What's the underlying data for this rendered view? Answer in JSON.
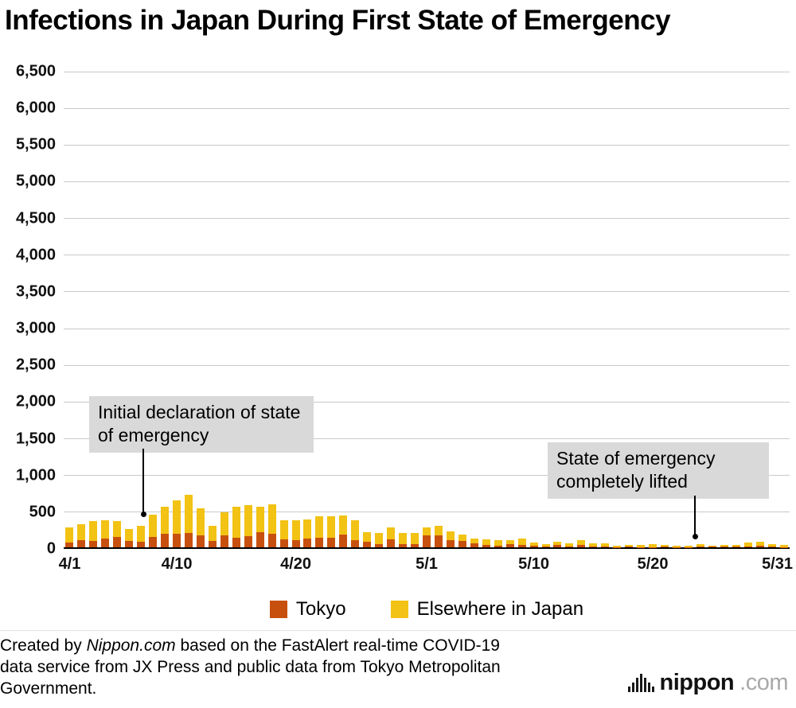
{
  "title": "Infections in Japan During First State of Emergency",
  "annotations": {
    "declaration": "Initial declaration of state of emergency",
    "lifted": "State of emergency completely lifted"
  },
  "legend": {
    "tokyo_label": "Tokyo",
    "elsewhere_label": "Elsewhere in Japan"
  },
  "colors": {
    "tokyo": "#c8500e",
    "elsewhere": "#f2c214",
    "annotation_bg": "#d9d9d9",
    "gridline": "#c9c9c9",
    "axis": "#000000"
  },
  "footer": {
    "line1_prefix": "Created by ",
    "line1_credit": "Nippon.com",
    "line1_rest": " based on the FastAlert real-time COVID-19",
    "line2": "data service from JX Press and public data from Tokyo Metropolitan",
    "line3": "Government."
  },
  "logo": {
    "name": "nippon",
    "suffix": ".com"
  },
  "chart_data": {
    "type": "bar",
    "stacked": true,
    "title": "Infections in Japan During First State of Emergency",
    "xlabel": "",
    "ylabel": "",
    "ylim": [
      0,
      6500
    ],
    "ytick_step": 500,
    "grid": true,
    "legend_position": "bottom",
    "x": [
      "4/1",
      "4/2",
      "4/3",
      "4/4",
      "4/5",
      "4/6",
      "4/7",
      "4/8",
      "4/9",
      "4/10",
      "4/11",
      "4/12",
      "4/13",
      "4/14",
      "4/15",
      "4/16",
      "4/17",
      "4/18",
      "4/19",
      "4/20",
      "4/21",
      "4/22",
      "4/23",
      "4/24",
      "4/25",
      "4/26",
      "4/27",
      "4/28",
      "4/29",
      "4/30",
      "5/1",
      "5/2",
      "5/3",
      "5/4",
      "5/5",
      "5/6",
      "5/7",
      "5/8",
      "5/9",
      "5/10",
      "5/11",
      "5/12",
      "5/13",
      "5/14",
      "5/15",
      "5/16",
      "5/17",
      "5/18",
      "5/19",
      "5/20",
      "5/21",
      "5/22",
      "5/23",
      "5/24",
      "5/25",
      "5/26",
      "5/27",
      "5/28",
      "5/29",
      "5/30",
      "5/31"
    ],
    "series": [
      {
        "name": "Tokyo",
        "color": "#c8500e",
        "values": [
          66,
          97,
          89,
          116,
          143,
          83,
          80,
          144,
          181,
          189,
          197,
          166,
          91,
          161,
          127,
          149,
          201,
          181,
          107,
          102,
          123,
          132,
          134,
          170,
          103,
          72,
          39,
          112,
          47,
          46,
          165,
          160,
          93,
          87,
          58,
          38,
          23,
          39,
          36,
          22,
          15,
          28,
          10,
          30,
          9,
          14,
          5,
          10,
          5,
          5,
          11,
          3,
          2,
          14,
          8,
          10,
          11,
          15,
          22,
          14,
          5
        ]
      },
      {
        "name": "Elsewhere in Japan",
        "color": "#f2c214",
        "values": [
          200,
          217,
          265,
          252,
          215,
          169,
          216,
          304,
          368,
          455,
          517,
          364,
          205,
          321,
          422,
          427,
          355,
          402,
          260,
          265,
          255,
          291,
          292,
          263,
          265,
          138,
          155,
          164,
          146,
          147,
          101,
          135,
          125,
          91,
          65,
          67,
          73,
          61,
          79,
          48,
          30,
          51,
          45,
          70,
          41,
          38,
          22,
          21,
          27,
          34,
          26,
          23,
          24,
          28,
          13,
          26,
          22,
          48,
          53,
          33,
          30
        ]
      }
    ],
    "yticks": [
      {
        "value": 0,
        "label": "0"
      },
      {
        "value": 500,
        "label": "500"
      },
      {
        "value": 1000,
        "label": "1,000"
      },
      {
        "value": 1500,
        "label": "1,500"
      },
      {
        "value": 2000,
        "label": "2,000"
      },
      {
        "value": 2500,
        "label": "2,500"
      },
      {
        "value": 3000,
        "label": "3,000"
      },
      {
        "value": 3500,
        "label": "3,500"
      },
      {
        "value": 4000,
        "label": "4,000"
      },
      {
        "value": 4500,
        "label": "4,500"
      },
      {
        "value": 5000,
        "label": "5,000"
      },
      {
        "value": 5500,
        "label": "5,500"
      },
      {
        "value": 6000,
        "label": "6,000"
      },
      {
        "value": 6500,
        "label": "6,500"
      }
    ],
    "xticks": [
      {
        "index": 0,
        "label": "4/1"
      },
      {
        "index": 9,
        "label": "4/10"
      },
      {
        "index": 19,
        "label": "4/20"
      },
      {
        "index": 30,
        "label": "5/1"
      },
      {
        "index": 39,
        "label": "5/10"
      },
      {
        "index": 49,
        "label": "5/20"
      },
      {
        "index": 60,
        "label": "5/31"
      }
    ]
  }
}
